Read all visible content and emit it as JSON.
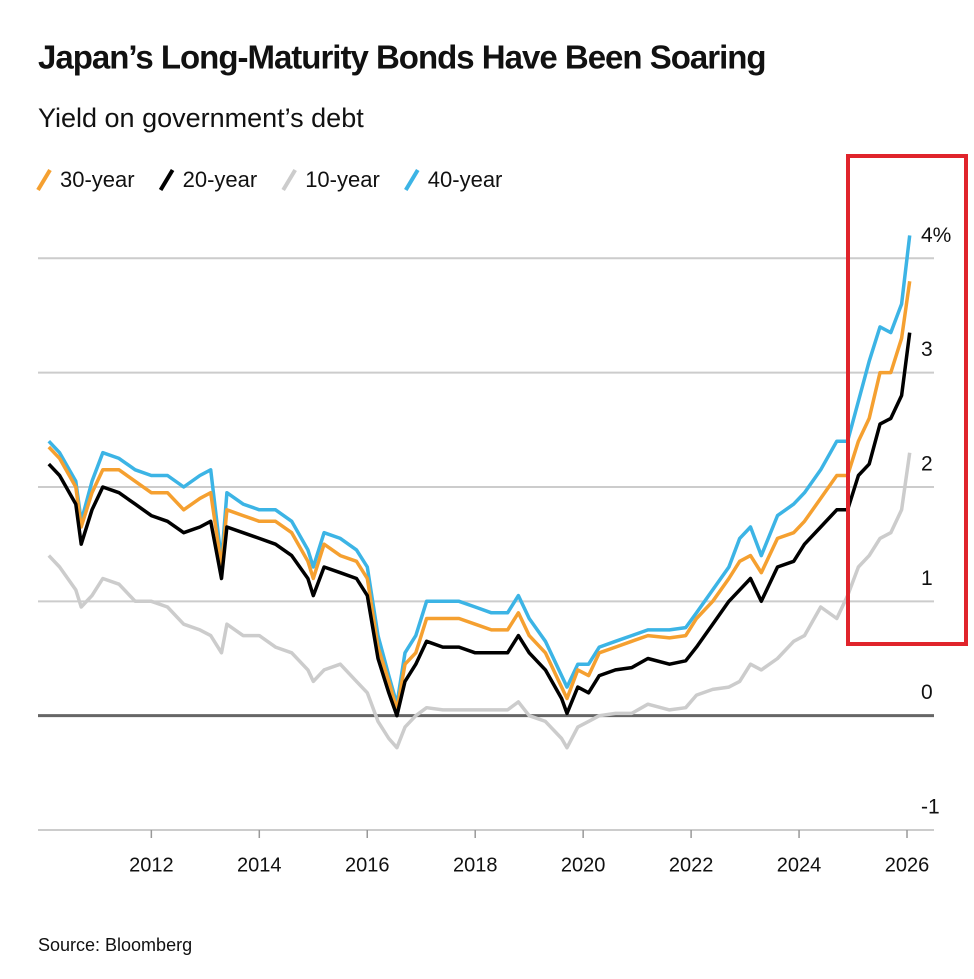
{
  "chart_data": {
    "type": "line",
    "title": "Japan’s Long-Maturity Bonds Have Been Soaring",
    "subtitle": "Yield on government’s debt",
    "source": "Source: Bloomberg",
    "x": [
      2010.1,
      2010.3,
      2010.6,
      2010.7,
      2010.9,
      2011.1,
      2011.4,
      2011.7,
      2012.0,
      2012.3,
      2012.6,
      2012.9,
      2013.1,
      2013.3,
      2013.4,
      2013.7,
      2014.0,
      2014.3,
      2014.6,
      2014.9,
      2015.0,
      2015.2,
      2015.5,
      2015.8,
      2016.0,
      2016.2,
      2016.4,
      2016.55,
      2016.7,
      2016.9,
      2017.1,
      2017.4,
      2017.7,
      2018.0,
      2018.3,
      2018.6,
      2018.8,
      2019.0,
      2019.3,
      2019.6,
      2019.7,
      2019.9,
      2020.1,
      2020.3,
      2020.6,
      2020.9,
      2021.2,
      2021.6,
      2021.9,
      2022.1,
      2022.4,
      2022.7,
      2022.9,
      2023.1,
      2023.3,
      2023.6,
      2023.9,
      2024.1,
      2024.4,
      2024.7,
      2024.9,
      2025.1,
      2025.3,
      2025.5,
      2025.7,
      2025.9,
      2026.05
    ],
    "series": [
      {
        "name": "30-year",
        "color": "#f5a030",
        "values": [
          2.35,
          2.25,
          2.0,
          1.65,
          1.95,
          2.15,
          2.15,
          2.05,
          1.95,
          1.95,
          1.8,
          1.9,
          1.95,
          1.3,
          1.8,
          1.75,
          1.7,
          1.7,
          1.6,
          1.35,
          1.2,
          1.5,
          1.4,
          1.35,
          1.2,
          0.6,
          0.3,
          0.05,
          0.45,
          0.55,
          0.85,
          0.85,
          0.85,
          0.8,
          0.75,
          0.75,
          0.9,
          0.7,
          0.55,
          0.25,
          0.15,
          0.4,
          0.35,
          0.55,
          0.6,
          0.65,
          0.7,
          0.68,
          0.7,
          0.85,
          1.0,
          1.2,
          1.35,
          1.4,
          1.25,
          1.55,
          1.6,
          1.7,
          1.9,
          2.1,
          2.1,
          2.4,
          2.6,
          3.0,
          3.0,
          3.3,
          3.8
        ]
      },
      {
        "name": "20-year",
        "color": "#000000",
        "values": [
          2.2,
          2.1,
          1.85,
          1.5,
          1.8,
          2.0,
          1.95,
          1.85,
          1.75,
          1.7,
          1.6,
          1.65,
          1.7,
          1.2,
          1.65,
          1.6,
          1.55,
          1.5,
          1.4,
          1.2,
          1.05,
          1.3,
          1.25,
          1.2,
          1.05,
          0.5,
          0.2,
          0.0,
          0.3,
          0.45,
          0.65,
          0.6,
          0.6,
          0.55,
          0.55,
          0.55,
          0.7,
          0.55,
          0.4,
          0.15,
          0.02,
          0.25,
          0.2,
          0.35,
          0.4,
          0.42,
          0.5,
          0.45,
          0.48,
          0.6,
          0.8,
          1.0,
          1.1,
          1.2,
          1.0,
          1.3,
          1.35,
          1.5,
          1.65,
          1.8,
          1.8,
          2.1,
          2.2,
          2.55,
          2.6,
          2.8,
          3.35
        ]
      },
      {
        "name": "10-year",
        "color": "#cccccc",
        "values": [
          1.4,
          1.3,
          1.1,
          0.95,
          1.05,
          1.2,
          1.15,
          1.0,
          1.0,
          0.95,
          0.8,
          0.75,
          0.7,
          0.55,
          0.8,
          0.7,
          0.7,
          0.6,
          0.55,
          0.4,
          0.3,
          0.4,
          0.45,
          0.3,
          0.2,
          -0.05,
          -0.2,
          -0.28,
          -0.1,
          0.0,
          0.07,
          0.05,
          0.05,
          0.05,
          0.05,
          0.05,
          0.12,
          0.0,
          -0.05,
          -0.2,
          -0.28,
          -0.1,
          -0.05,
          0.0,
          0.02,
          0.02,
          0.1,
          0.05,
          0.07,
          0.18,
          0.23,
          0.25,
          0.3,
          0.45,
          0.4,
          0.5,
          0.65,
          0.7,
          0.95,
          0.85,
          1.05,
          1.3,
          1.4,
          1.55,
          1.6,
          1.8,
          2.3
        ]
      },
      {
        "name": "40-year",
        "color": "#3cb4e5",
        "values": [
          2.4,
          2.3,
          2.05,
          1.7,
          2.05,
          2.3,
          2.25,
          2.15,
          2.1,
          2.1,
          2.0,
          2.1,
          2.15,
          1.35,
          1.95,
          1.85,
          1.8,
          1.8,
          1.7,
          1.45,
          1.3,
          1.6,
          1.55,
          1.45,
          1.3,
          0.7,
          0.35,
          0.1,
          0.55,
          0.7,
          1.0,
          1.0,
          1.0,
          0.95,
          0.9,
          0.9,
          1.05,
          0.85,
          0.65,
          0.35,
          0.25,
          0.45,
          0.45,
          0.6,
          0.65,
          0.7,
          0.75,
          0.75,
          0.77,
          0.9,
          1.1,
          1.3,
          1.55,
          1.65,
          1.4,
          1.75,
          1.85,
          1.95,
          2.15,
          2.4,
          2.4,
          2.75,
          3.1,
          3.4,
          3.35,
          3.6,
          4.2
        ]
      }
    ],
    "xlim": [
      2009.9,
      2026.5
    ],
    "xticks": [
      2012,
      2014,
      2016,
      2018,
      2020,
      2022,
      2024,
      2026
    ],
    "ylim": [
      -1,
      4.3
    ],
    "yticks": [
      -1,
      0,
      1,
      2,
      3,
      {
        "value": 4,
        "label": "4%"
      }
    ],
    "grid": true
  }
}
